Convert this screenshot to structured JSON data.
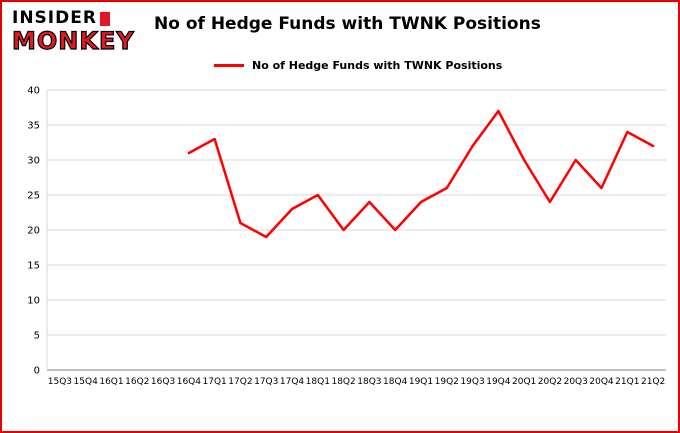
{
  "page": {
    "border_color": "#e60000",
    "background": "#ffffff"
  },
  "logo": {
    "line1": "INSIDER",
    "line2": "MONKEY",
    "red": "#e01a22"
  },
  "header": {
    "title": "No of Hedge Funds with TWNK Positions"
  },
  "legend": {
    "label": "No of Hedge Funds with TWNK Positions",
    "color": "#ff0000"
  },
  "chart_data": {
    "type": "line",
    "title": "No of Hedge Funds with TWNK Positions",
    "xlabel": "",
    "ylabel": "",
    "categories": [
      "15Q3",
      "15Q4",
      "16Q1",
      "16Q2",
      "16Q3",
      "16Q4",
      "17Q1",
      "17Q2",
      "17Q3",
      "17Q4",
      "18Q1",
      "18Q2",
      "18Q3",
      "18Q4",
      "19Q1",
      "19Q2",
      "19Q3",
      "19Q4",
      "20Q1",
      "20Q2",
      "20Q3",
      "20Q4",
      "21Q1",
      "21Q2"
    ],
    "series": [
      {
        "name": "No of Hedge Funds with TWNK Positions",
        "color": "#ff0000",
        "values": [
          null,
          null,
          null,
          null,
          null,
          31,
          33,
          21,
          19,
          23,
          25,
          20,
          24,
          20,
          24,
          26,
          32,
          37,
          30,
          24,
          30,
          26,
          34,
          32
        ]
      }
    ],
    "ylim": [
      0,
      40
    ],
    "ytick_step": 5,
    "grid": true,
    "gridline_color": "#d9d9d9",
    "axis_color": "#808080",
    "legend_position": "top"
  }
}
